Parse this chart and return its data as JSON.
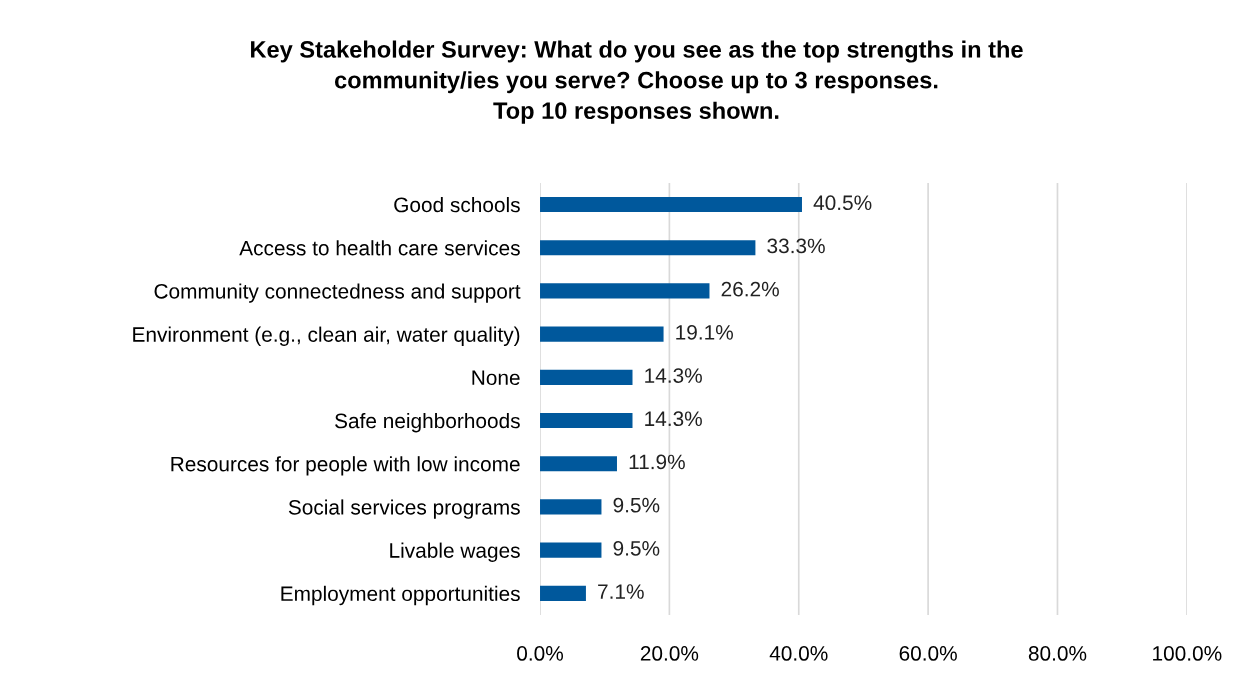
{
  "chart_data": {
    "type": "bar",
    "orientation": "horizontal",
    "title": "Key Stakeholder Survey: What do you see as the top strengths in the\ncommunity/ies you serve? Choose up to 3 responses.\nTop 10 responses shown.",
    "categories": [
      "Good schools",
      "Access to health care services",
      "Community connectedness and support",
      "Environment (e.g., clean air, water quality)",
      "None",
      "Safe neighborhoods",
      "Resources for people with low income",
      "Social services programs",
      "Livable wages",
      "Employment opportunities"
    ],
    "values": [
      40.5,
      33.3,
      26.2,
      19.1,
      14.3,
      14.3,
      11.9,
      9.5,
      9.5,
      7.1
    ],
    "value_labels": [
      "40.5%",
      "33.3%",
      "26.2%",
      "19.1%",
      "14.3%",
      "14.3%",
      "11.9%",
      "9.5%",
      "9.5%",
      "7.1%"
    ],
    "color": "#00589c",
    "xlim": [
      0,
      100
    ],
    "xticks": [
      {
        "value": 0,
        "label": "0.0%"
      },
      {
        "value": 20,
        "label": "20.0%"
      },
      {
        "value": 40,
        "label": "40.0%"
      },
      {
        "value": 60,
        "label": "60.0%"
      },
      {
        "value": 80,
        "label": "80.0%"
      },
      {
        "value": 100,
        "label": "100.0%"
      }
    ],
    "grid": "x",
    "legend": false
  }
}
